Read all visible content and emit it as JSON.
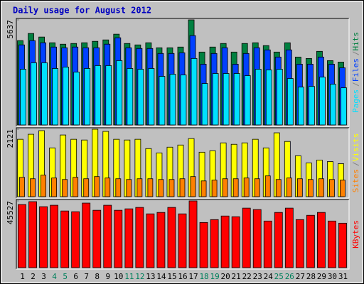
{
  "chart_data": [
    {
      "type": "bar",
      "title": "Daily usage for August 2012",
      "separator": "/",
      "ylim": [
        0,
        5637
      ],
      "yticks": [
        5637
      ],
      "series": [
        {
          "name": "Hits",
          "color": "#008040",
          "values": [
            4525,
            4908,
            4717,
            4410,
            4333,
            4372,
            4410,
            4487,
            4563,
            4870,
            4372,
            4295,
            4410,
            4141,
            4141,
            4180,
            5637,
            3911,
            4180,
            4372,
            3911,
            4372,
            4410,
            4257,
            3911,
            4410,
            3643,
            3566,
            3950,
            3451,
            3374
          ]
        },
        {
          "name": "Files",
          "color": "#0040ff",
          "values": [
            4295,
            4525,
            4410,
            4180,
            4142,
            4180,
            4142,
            4142,
            4334,
            4679,
            4142,
            4103,
            4103,
            3835,
            3835,
            3873,
            4794,
            3260,
            3835,
            4142,
            3260,
            3835,
            4142,
            4027,
            3643,
            4027,
            3260,
            3260,
            3643,
            3260,
            3068
          ]
        },
        {
          "name": "Pages",
          "color": "#00e0ff",
          "values": [
            2991,
            3336,
            3336,
            3030,
            3106,
            2838,
            3030,
            3183,
            3183,
            3451,
            3030,
            2991,
            3030,
            2608,
            2723,
            2684,
            3566,
            2224,
            2761,
            2761,
            2761,
            2646,
            2991,
            2953,
            2991,
            2493,
            2032,
            2071,
            2569,
            2186,
            1994
          ]
        }
      ]
    },
    {
      "type": "bar",
      "separator": "/",
      "ylim": [
        0,
        2121
      ],
      "yticks": [
        2121
      ],
      "series": [
        {
          "name": "Visits",
          "color": "#ffff00",
          "values": [
            1805,
            1963,
            2076,
            1534,
            1940,
            1805,
            1782,
            2121,
            2053,
            1805,
            1782,
            1805,
            1512,
            1376,
            1557,
            1624,
            1827,
            1399,
            1444,
            1692,
            1647,
            1692,
            1805,
            1534,
            2008,
            1737,
            1286,
            1060,
            1151,
            1105,
            1038
          ]
        },
        {
          "name": "Sites",
          "color": "#ff8000",
          "values": [
            609,
            564,
            677,
            587,
            541,
            609,
            564,
            632,
            587,
            564,
            541,
            564,
            564,
            541,
            541,
            564,
            632,
            496,
            519,
            564,
            564,
            587,
            564,
            654,
            541,
            587,
            564,
            541,
            564,
            541,
            519
          ]
        }
      ]
    },
    {
      "type": "bar",
      "ylim": [
        0,
        45527
      ],
      "yticks": [
        45527
      ],
      "categories": [
        "1",
        "2",
        "3",
        "4",
        "5",
        "6",
        "7",
        "8",
        "9",
        "10",
        "11",
        "12",
        "13",
        "14",
        "15",
        "16",
        "17",
        "18",
        "19",
        "20",
        "21",
        "22",
        "23",
        "24",
        "25",
        "26",
        "27",
        "28",
        "29",
        "30",
        "31"
      ],
      "category_colors": [
        "#000000",
        "#000000",
        "#000000",
        "#00805c",
        "#00805c",
        "#000000",
        "#000000",
        "#000000",
        "#000000",
        "#000000",
        "#00805c",
        "#00805c",
        "#000000",
        "#000000",
        "#000000",
        "#000000",
        "#000000",
        "#00805c",
        "#00805c",
        "#000000",
        "#000000",
        "#000000",
        "#000000",
        "#000000",
        "#00805c",
        "#00805c",
        "#000000",
        "#000000",
        "#000000",
        "#000000",
        "#000000"
      ],
      "series": [
        {
          "name": "KBytes",
          "color": "#ff0000",
          "values": [
            43076,
            45037,
            41608,
            42587,
            38671,
            38181,
            44055,
            39160,
            42587,
            39160,
            40139,
            41118,
            36713,
            37692,
            41118,
            36713,
            45527,
            30839,
            32797,
            35244,
            34755,
            40629,
            39650,
            31818,
            37692,
            40629,
            32797,
            35734,
            37692,
            31818,
            30349
          ]
        }
      ]
    }
  ]
}
